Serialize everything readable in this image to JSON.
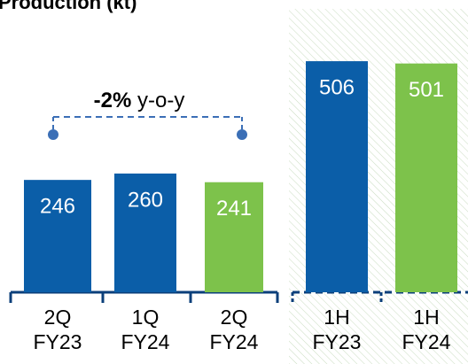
{
  "chart_data": {
    "type": "bar",
    "title": "Production (kt)",
    "categories": [
      [
        "2Q",
        "FY23"
      ],
      [
        "1Q",
        "FY24"
      ],
      [
        "2Q",
        "FY24"
      ],
      [
        "1H",
        "FY23"
      ],
      [
        "1H",
        "FY24"
      ]
    ],
    "values": [
      246,
      260,
      241,
      506,
      501
    ],
    "colors": [
      "#0b5ea8",
      "#0b5ea8",
      "#7dc24b",
      "#0b5ea8",
      "#7dc24b"
    ],
    "ylim": [
      0,
      640
    ],
    "annotation": {
      "bold": "-2%",
      "text": "y-o-y"
    }
  }
}
